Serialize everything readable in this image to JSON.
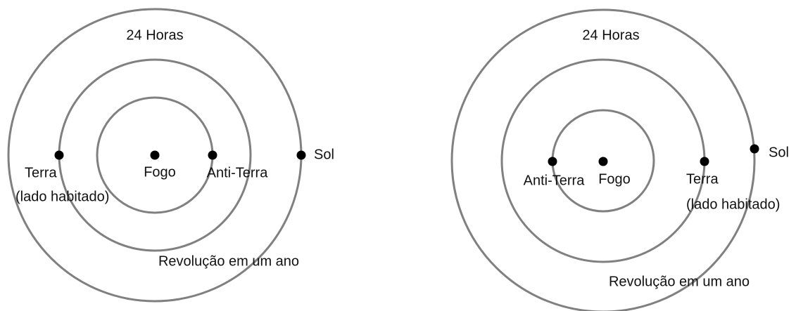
{
  "diagrams": [
    {
      "top_label": "24 Horas",
      "center": "Fogo",
      "anti_earth": "Anti-Terra",
      "earth": [
        "Terra",
        "(lado habitado)"
      ],
      "sun": "Sol",
      "orbit_label": "Revolução em um ano"
    },
    {
      "top_label": "24 Horas",
      "center": "Fogo",
      "anti_earth": "Anti-Terra",
      "earth": [
        "Terra",
        "(lado habitado)"
      ],
      "sun": "Sol",
      "orbit_label": "Revolução em um ano"
    }
  ]
}
